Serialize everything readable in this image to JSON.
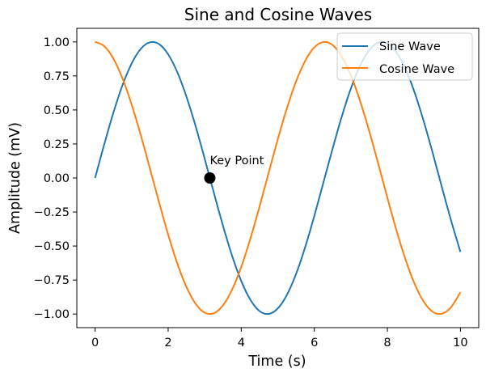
{
  "chart_data": {
    "type": "line",
    "title": "Sine and Cosine Waves",
    "xlabel": "Time (s)",
    "ylabel": "Amplitude (mV)",
    "xlim": [
      -0.5,
      10.5
    ],
    "ylim": [
      -1.1,
      1.1
    ],
    "x_ticks": [
      0,
      2,
      4,
      6,
      8,
      10
    ],
    "x_tick_labels": [
      "0",
      "2",
      "4",
      "6",
      "8",
      "10"
    ],
    "y_ticks": [
      -1.0,
      -0.75,
      -0.5,
      -0.25,
      0.0,
      0.25,
      0.5,
      0.75,
      1.0
    ],
    "y_tick_labels": [
      "−1.00",
      "−0.75",
      "−0.50",
      "−0.25",
      "0.00",
      "0.25",
      "0.50",
      "0.75",
      "1.00"
    ],
    "grid": false,
    "legend_position": "upper right",
    "series": [
      {
        "name": "Sine Wave",
        "color": "#1f77b4",
        "x": [
          0.0,
          0.25,
          0.5,
          0.75,
          1.0,
          1.25,
          1.5,
          1.75,
          2.0,
          2.25,
          2.5,
          2.75,
          3.0,
          3.25,
          3.5,
          3.75,
          4.0,
          4.25,
          4.5,
          4.75,
          5.0,
          5.25,
          5.5,
          5.75,
          6.0,
          6.25,
          6.5,
          6.75,
          7.0,
          7.25,
          7.5,
          7.75,
          8.0,
          8.25,
          8.5,
          8.75,
          9.0,
          9.25,
          9.5,
          9.75,
          10.0
        ],
        "y": [
          0.0,
          0.247,
          0.479,
          0.682,
          0.841,
          0.949,
          0.997,
          0.984,
          0.909,
          0.778,
          0.598,
          0.382,
          0.141,
          -0.108,
          -0.351,
          -0.572,
          -0.757,
          -0.895,
          -0.978,
          -0.999,
          -0.959,
          -0.859,
          -0.706,
          -0.508,
          -0.279,
          -0.033,
          0.215,
          0.45,
          0.657,
          0.823,
          0.938,
          0.995,
          0.989,
          0.923,
          0.798,
          0.625,
          0.412,
          0.174,
          -0.075,
          -0.319,
          -0.544
        ]
      },
      {
        "name": "Cosine Wave",
        "color": "#ff7f0e",
        "x": [
          0.0,
          0.25,
          0.5,
          0.75,
          1.0,
          1.25,
          1.5,
          1.75,
          2.0,
          2.25,
          2.5,
          2.75,
          3.0,
          3.25,
          3.5,
          3.75,
          4.0,
          4.25,
          4.5,
          4.75,
          5.0,
          5.25,
          5.5,
          5.75,
          6.0,
          6.25,
          6.5,
          6.75,
          7.0,
          7.25,
          7.5,
          7.75,
          8.0,
          8.25,
          8.5,
          8.75,
          9.0,
          9.25,
          9.5,
          9.75,
          10.0
        ],
        "y": [
          1.0,
          0.969,
          0.878,
          0.732,
          0.54,
          0.315,
          0.071,
          -0.178,
          -0.416,
          -0.628,
          -0.801,
          -0.924,
          -0.99,
          -0.994,
          -0.936,
          -0.82,
          -0.654,
          -0.446,
          -0.211,
          0.037,
          0.284,
          0.512,
          0.709,
          0.861,
          0.96,
          0.999,
          0.977,
          0.893,
          0.754,
          0.568,
          0.347,
          0.105,
          -0.146,
          -0.386,
          -0.602,
          -0.781,
          -0.911,
          -0.985,
          -0.997,
          -0.947,
          -0.839
        ]
      }
    ],
    "annotations": [
      {
        "text": "Key Point",
        "x": 3.14,
        "y": 0.0,
        "marker_color": "#000000"
      }
    ]
  }
}
